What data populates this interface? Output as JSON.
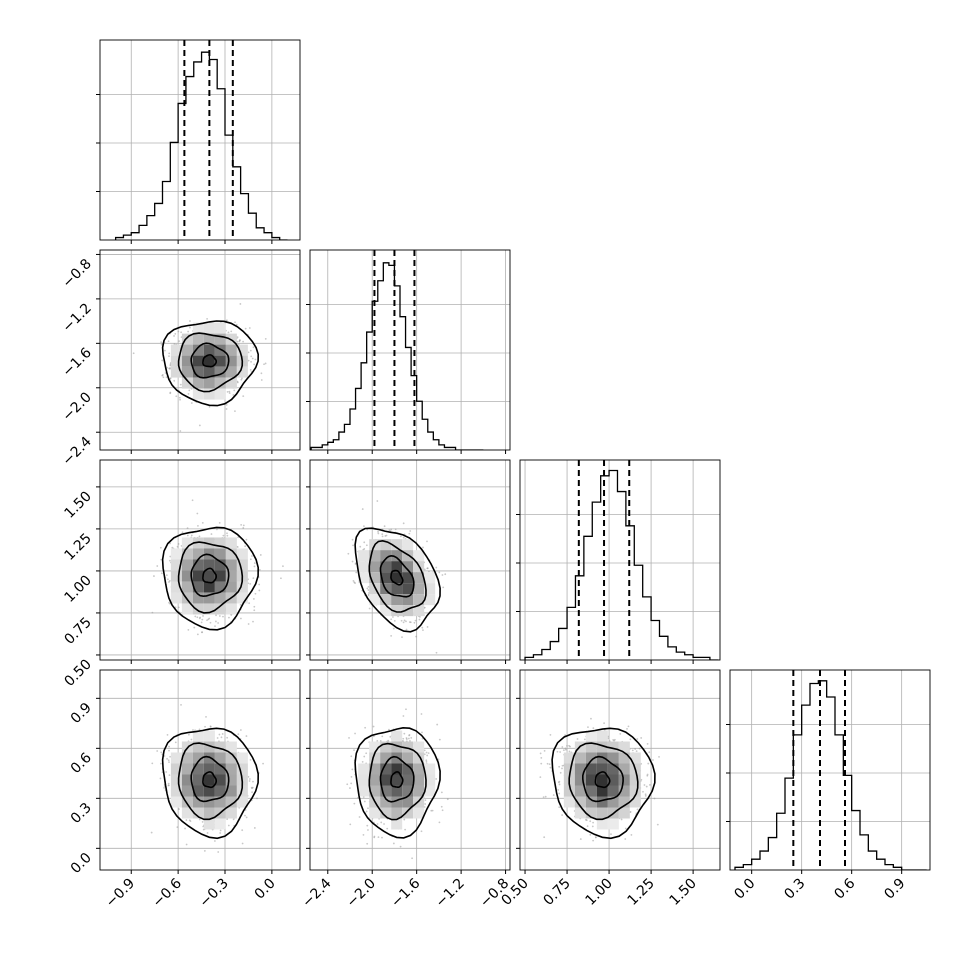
{
  "chart_data": {
    "type": "corner",
    "parameters": 4,
    "grid": true,
    "line_color": "#000000",
    "point_color": "#9a9a9a",
    "density_cmap": "gray_r",
    "ranges": [
      [
        -1.1,
        0.18
      ],
      [
        -2.56,
        -0.76
      ],
      [
        0.47,
        1.66
      ],
      [
        -0.13,
        1.07
      ]
    ],
    "axis_ticks": [
      {
        "values": [
          -0.9,
          -0.6,
          -0.3,
          0.0
        ],
        "labels": [
          "−0.9",
          "−0.6",
          "−0.3",
          "0.0"
        ]
      },
      {
        "values": [
          -2.4,
          -2.0,
          -1.6,
          -1.2,
          -0.8
        ],
        "labels": [
          "−2.4",
          "−2.0",
          "−1.6",
          "−1.2",
          "−0.8"
        ]
      },
      {
        "values": [
          0.5,
          0.75,
          1.0,
          1.25,
          1.5
        ],
        "labels": [
          "0.50",
          "0.75",
          "1.00",
          "1.25",
          "1.50"
        ]
      },
      {
        "values": [
          0.0,
          0.3,
          0.6,
          0.9
        ],
        "labels": [
          "0.0",
          "0.3",
          "0.6",
          "0.9"
        ]
      }
    ],
    "histograms": [
      {
        "param": 0,
        "bin_edges": [
          -1.0,
          -0.95,
          -0.9,
          -0.85,
          -0.8,
          -0.75,
          -0.7,
          -0.65,
          -0.6,
          -0.55,
          -0.5,
          -0.45,
          -0.4,
          -0.35,
          -0.3,
          -0.25,
          -0.2,
          -0.15,
          -0.1,
          -0.05,
          0.0,
          0.05,
          0.1
        ],
        "counts": [
          1,
          2,
          3,
          6,
          10,
          15,
          24,
          40,
          56,
          67,
          73,
          77,
          74,
          62,
          43,
          30,
          19,
          11,
          5,
          3,
          1,
          0
        ],
        "ymax": 82,
        "quantiles": [
          -0.56,
          -0.4,
          -0.25
        ]
      },
      {
        "param": 1,
        "bin_edges": [
          -2.55,
          -2.5,
          -2.45,
          -2.4,
          -2.35,
          -2.3,
          -2.25,
          -2.2,
          -2.15,
          -2.1,
          -2.05,
          -2.0,
          -1.95,
          -1.9,
          -1.85,
          -1.8,
          -1.75,
          -1.7,
          -1.65,
          -1.6,
          -1.55,
          -1.5,
          -1.45,
          -1.4,
          -1.35,
          -1.3,
          -1.25,
          -1.2,
          -1.15,
          -1.1,
          -1.05,
          -1.0
        ],
        "counts": [
          1,
          1,
          2,
          3,
          4,
          7,
          10,
          16,
          24,
          34,
          46,
          58,
          66,
          73,
          72,
          64,
          52,
          40,
          29,
          19,
          12,
          7,
          4,
          2,
          1,
          1,
          0,
          0,
          0,
          0,
          0
        ],
        "ymax": 78,
        "quantiles": [
          -1.98,
          -1.8,
          -1.62
        ]
      },
      {
        "param": 2,
        "bin_edges": [
          0.5,
          0.55,
          0.6,
          0.65,
          0.7,
          0.75,
          0.8,
          0.85,
          0.9,
          0.95,
          1.0,
          1.05,
          1.1,
          1.15,
          1.2,
          1.25,
          1.3,
          1.35,
          1.4,
          1.45,
          1.5,
          1.55,
          1.6,
          1.65
        ],
        "counts": [
          1,
          2,
          4,
          7,
          12,
          20,
          32,
          47,
          60,
          70,
          72,
          64,
          51,
          36,
          24,
          15,
          9,
          5,
          3,
          2,
          1,
          1,
          0
        ],
        "ymax": 76,
        "quantiles": [
          0.82,
          0.97,
          1.12
        ]
      },
      {
        "param": 3,
        "bin_edges": [
          -0.1,
          -0.05,
          0.0,
          0.05,
          0.1,
          0.15,
          0.2,
          0.25,
          0.3,
          0.35,
          0.4,
          0.45,
          0.5,
          0.55,
          0.6,
          0.65,
          0.7,
          0.75,
          0.8,
          0.85,
          0.9,
          0.95,
          1.0,
          1.05
        ],
        "counts": [
          1,
          2,
          4,
          7,
          12,
          21,
          34,
          50,
          61,
          69,
          70,
          64,
          50,
          35,
          22,
          13,
          7,
          4,
          2,
          1,
          0,
          0,
          0
        ],
        "ymax": 74,
        "quantiles": [
          0.25,
          0.41,
          0.56
        ]
      }
    ],
    "scatter_panels": [
      {
        "row": 1,
        "col": 0,
        "center": [
          -0.4,
          -1.76
        ],
        "spread": [
          0.12,
          0.15
        ],
        "corr": 0.0
      },
      {
        "row": 2,
        "col": 0,
        "center": [
          -0.4,
          0.97
        ],
        "spread": [
          0.12,
          0.12
        ],
        "corr": 0.0
      },
      {
        "row": 2,
        "col": 1,
        "center": [
          -1.78,
          0.96
        ],
        "spread": [
          0.15,
          0.12
        ],
        "corr": -0.35
      },
      {
        "row": 3,
        "col": 0,
        "center": [
          -0.4,
          0.41
        ],
        "spread": [
          0.12,
          0.13
        ],
        "corr": -0.05
      },
      {
        "row": 3,
        "col": 1,
        "center": [
          -1.78,
          0.41
        ],
        "spread": [
          0.15,
          0.13
        ],
        "corr": 0.0
      },
      {
        "row": 3,
        "col": 2,
        "center": [
          0.96,
          0.41
        ],
        "spread": [
          0.12,
          0.13
        ],
        "corr": -0.05
      }
    ]
  }
}
